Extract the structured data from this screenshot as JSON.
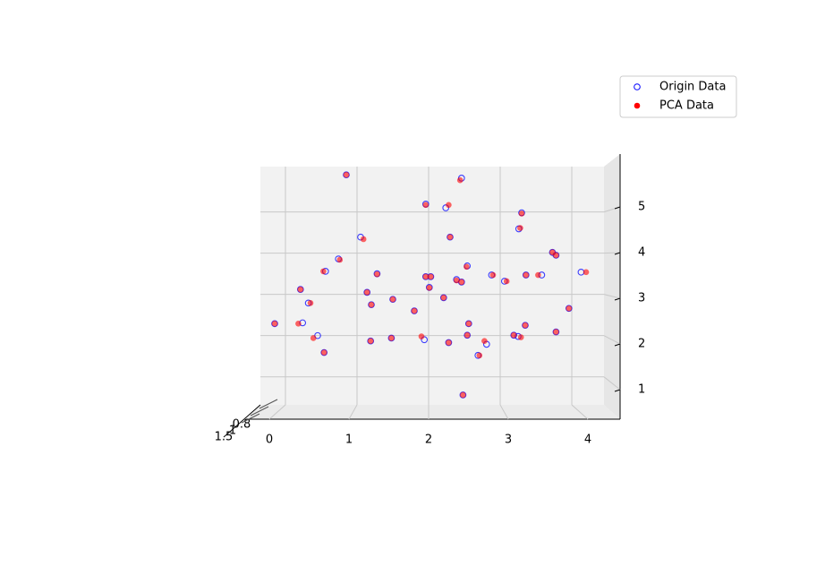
{
  "chart_data": {
    "type": "scatter",
    "xlim": [
      -0.35,
      4.45
    ],
    "xticks": [
      0,
      1,
      2,
      3,
      4
    ],
    "ylim": [
      0.32,
      6.1
    ],
    "yticks": [
      1,
      2,
      3,
      4,
      5
    ],
    "depth_ticks": [
      0.8,
      1.0,
      1.5
    ],
    "grid": true,
    "legend": "upper right",
    "series": [
      {
        "name": "Origin Data",
        "color": "#0000ff",
        "marker": "hollow",
        "x": [
          0.85,
          2.46,
          1.96,
          2.24,
          3.3,
          3.26,
          1.05,
          2.3,
          0.74,
          3.73,
          3.78,
          2.54,
          0.56,
          1.28,
          1.96,
          2.03,
          2.39,
          2.46,
          2.88,
          3.06,
          3.36,
          3.58,
          4.13,
          0.21,
          1.14,
          2.01,
          0.32,
          1.2,
          1.5,
          2.21,
          3.96,
          1.8,
          -0.15,
          0.24,
          2.56,
          3.35,
          0.45,
          1.48,
          1.94,
          2.54,
          3.19,
          3.25,
          3.78,
          1.19,
          2.28,
          2.81,
          0.54,
          2.69,
          2.48
        ],
        "values": [
          5.9,
          5.82,
          5.19,
          5.1,
          4.98,
          4.59,
          4.39,
          4.39,
          3.86,
          4.02,
          3.95,
          3.69,
          3.56,
          3.5,
          3.43,
          3.43,
          3.36,
          3.3,
          3.47,
          3.32,
          3.47,
          3.47,
          3.54,
          3.12,
          3.05,
          3.17,
          2.79,
          2.75,
          2.88,
          2.92,
          2.66,
          2.6,
          2.29,
          2.31,
          2.29,
          2.25,
          2.0,
          1.94,
          1.9,
          2.01,
          2.01,
          1.98,
          2.09,
          1.87,
          1.83,
          1.79,
          1.59,
          1.52,
          0.56
        ]
      },
      {
        "name": "PCA Data",
        "color": "#ff0000",
        "marker": "filled",
        "x": [
          0.85,
          2.44,
          1.96,
          2.28,
          3.3,
          3.28,
          1.09,
          2.3,
          0.76,
          3.73,
          3.78,
          2.53,
          0.53,
          1.28,
          1.96,
          2.03,
          2.39,
          2.46,
          2.9,
          3.09,
          3.36,
          3.53,
          4.2,
          0.21,
          1.14,
          2.01,
          0.35,
          1.2,
          1.5,
          2.21,
          3.96,
          1.8,
          -0.15,
          0.18,
          2.56,
          3.35,
          0.39,
          1.48,
          1.9,
          2.54,
          3.19,
          3.29,
          3.78,
          1.19,
          2.28,
          2.78,
          0.54,
          2.71,
          2.48
        ],
        "values": [
          5.9,
          5.77,
          5.17,
          5.17,
          4.96,
          4.61,
          4.34,
          4.39,
          3.84,
          4.02,
          3.95,
          3.67,
          3.56,
          3.49,
          3.43,
          3.43,
          3.34,
          3.3,
          3.47,
          3.32,
          3.47,
          3.47,
          3.54,
          3.12,
          3.05,
          3.16,
          2.79,
          2.75,
          2.88,
          2.92,
          2.66,
          2.6,
          2.29,
          2.29,
          2.29,
          2.25,
          1.94,
          1.94,
          1.98,
          2.01,
          2.01,
          1.96,
          2.09,
          1.87,
          1.83,
          1.87,
          1.59,
          1.52,
          0.56
        ]
      }
    ]
  }
}
